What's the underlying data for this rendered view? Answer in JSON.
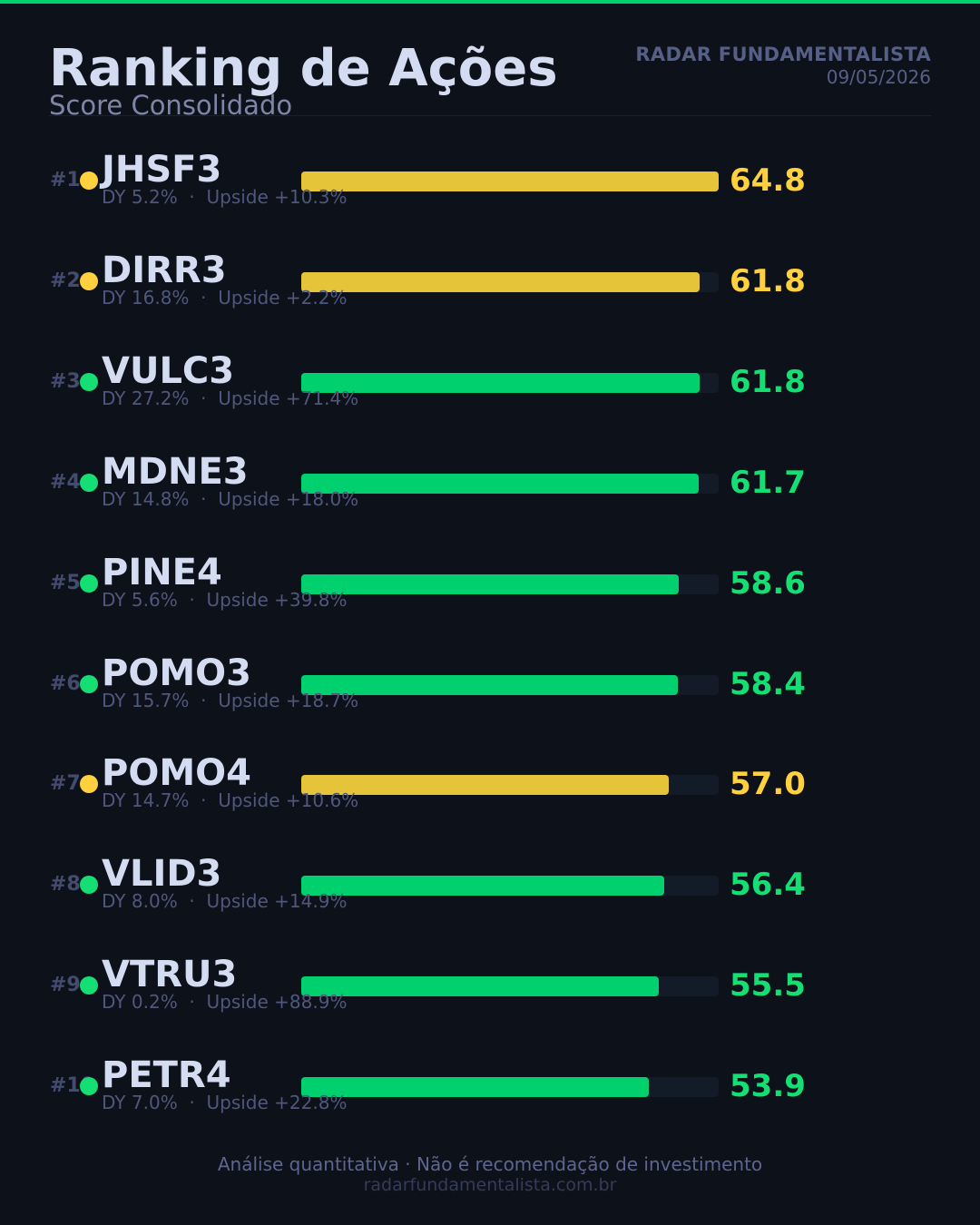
{
  "header": {
    "title": "Ranking de Ações",
    "subtitle": "Score Consolidado",
    "brand": "RADAR FUNDAMENTALISTA",
    "date": "09/05/2026"
  },
  "footer": {
    "disclaimer": "Análise quantitativa  ·  Não é recomendação de investimento",
    "site": "radarfundamentalista.com.br"
  },
  "colors": {
    "background": "#0d1119",
    "accent": "#00d26e",
    "yellow": "#e5c43a",
    "yellow_text": "#ffd13f",
    "green": "#00d06e",
    "green_text": "#14de74",
    "track": "#141b28"
  },
  "chart_data": {
    "type": "bar",
    "orientation": "horizontal",
    "xlim": [
      0,
      64.8
    ],
    "grid": false,
    "legend": "none",
    "items": [
      {
        "rank": "#1",
        "ticker": "JHSF3",
        "dy": "DY 5.2%",
        "upside": "Upside +10.3%",
        "score": 64.8,
        "score_label": "64.8",
        "color": "yellow"
      },
      {
        "rank": "#2",
        "ticker": "DIRR3",
        "dy": "DY 16.8%",
        "upside": "Upside +2.2%",
        "score": 61.8,
        "score_label": "61.8",
        "color": "yellow"
      },
      {
        "rank": "#3",
        "ticker": "VULC3",
        "dy": "DY 27.2%",
        "upside": "Upside +71.4%",
        "score": 61.8,
        "score_label": "61.8",
        "color": "green"
      },
      {
        "rank": "#4",
        "ticker": "MDNE3",
        "dy": "DY 14.8%",
        "upside": "Upside +18.0%",
        "score": 61.7,
        "score_label": "61.7",
        "color": "green"
      },
      {
        "rank": "#5",
        "ticker": "PINE4",
        "dy": "DY 5.6%",
        "upside": "Upside +39.8%",
        "score": 58.6,
        "score_label": "58.6",
        "color": "green"
      },
      {
        "rank": "#6",
        "ticker": "POMO3",
        "dy": "DY 15.7%",
        "upside": "Upside +18.7%",
        "score": 58.4,
        "score_label": "58.4",
        "color": "green"
      },
      {
        "rank": "#7",
        "ticker": "POMO4",
        "dy": "DY 14.7%",
        "upside": "Upside +10.6%",
        "score": 57.0,
        "score_label": "57.0",
        "color": "yellow"
      },
      {
        "rank": "#8",
        "ticker": "VLID3",
        "dy": "DY 8.0%",
        "upside": "Upside +14.9%",
        "score": 56.4,
        "score_label": "56.4",
        "color": "green"
      },
      {
        "rank": "#9",
        "ticker": "VTRU3",
        "dy": "DY 0.2%",
        "upside": "Upside +88.9%",
        "score": 55.5,
        "score_label": "55.5",
        "color": "green"
      },
      {
        "rank": "#10",
        "ticker": "PETR4",
        "dy": "DY 7.0%",
        "upside": "Upside +22.8%",
        "score": 53.9,
        "score_label": "53.9",
        "color": "green"
      }
    ]
  }
}
